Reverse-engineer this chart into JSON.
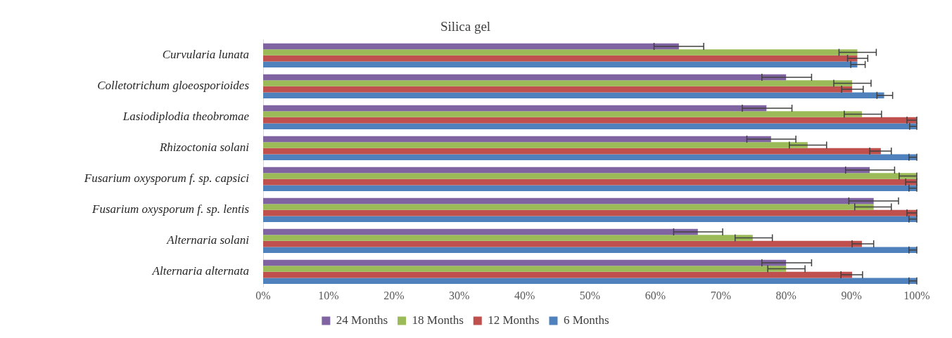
{
  "chart_data": {
    "type": "bar",
    "orientation": "horizontal",
    "title": "Silica gel",
    "categories": [
      "Curvularia lunata",
      "Colletotrichum gloeosporioides",
      "Lasiodiplodia theobromae",
      "Rhizoctonia solani",
      "Fusarium oxysporum f. sp. capsici",
      "Fusarium oxysporum f. sp. lentis",
      "Alternaria solani",
      "Alternaria alternata"
    ],
    "series": [
      {
        "name": "24 Months",
        "color": "#8064a2",
        "values": [
          63.6,
          80.0,
          77.0,
          77.7,
          92.8,
          93.4,
          66.5,
          80.0
        ],
        "errors": [
          [
            59.8,
            67.4
          ],
          [
            76.3,
            83.9
          ],
          [
            73.3,
            80.9
          ],
          [
            74.0,
            81.5
          ],
          [
            89.1,
            96.6
          ],
          [
            89.6,
            97.2
          ],
          [
            62.8,
            70.3
          ],
          [
            76.3,
            83.9
          ]
        ]
      },
      {
        "name": "18 Months",
        "color": "#9bbb59",
        "values": [
          90.9,
          90.1,
          91.6,
          83.3,
          100,
          93.4,
          74.9,
          80.0
        ],
        "errors": [
          [
            88.1,
            93.8
          ],
          [
            87.3,
            93.0
          ],
          [
            88.9,
            94.6
          ],
          [
            80.5,
            86.2
          ],
          [
            97.3,
            100
          ],
          [
            90.5,
            96.1
          ],
          [
            72.2,
            77.9
          ],
          [
            77.2,
            82.9
          ]
        ]
      },
      {
        "name": "12 Months",
        "color": "#c0504d",
        "values": [
          90.9,
          90.1,
          100,
          94.5,
          100,
          100,
          91.6,
          90.1
        ],
        "errors": [
          [
            89.4,
            92.5
          ],
          [
            88.5,
            91.8
          ],
          [
            98.5,
            100
          ],
          [
            92.8,
            96.1
          ],
          [
            98.3,
            100
          ],
          [
            98.5,
            100
          ],
          [
            90.1,
            93.4
          ],
          [
            88.4,
            91.7
          ]
        ]
      },
      {
        "name": "6 Months",
        "color": "#4f81bd",
        "values": [
          90.9,
          95.0,
          100,
          100,
          100,
          100,
          100,
          100
        ],
        "errors": [
          [
            89.9,
            92.1
          ],
          [
            93.9,
            96.3
          ],
          [
            98.9,
            100
          ],
          [
            98.8,
            100
          ],
          [
            98.8,
            100
          ],
          [
            98.8,
            100
          ],
          [
            98.8,
            100
          ],
          [
            98.8,
            100
          ]
        ]
      }
    ],
    "xlim": [
      0,
      100
    ],
    "xticks": [
      {
        "value": 0,
        "label": "0%"
      },
      {
        "value": 10,
        "label": "10%"
      },
      {
        "value": 20,
        "label": "20%"
      },
      {
        "value": 30,
        "label": "30%"
      },
      {
        "value": 40,
        "label": "40%"
      },
      {
        "value": 50,
        "label": "50%"
      },
      {
        "value": 60,
        "label": "60%"
      },
      {
        "value": 70,
        "label": "70%"
      },
      {
        "value": 80,
        "label": "80%"
      },
      {
        "value": 90,
        "label": "90%"
      },
      {
        "value": 100,
        "label": "100%"
      }
    ],
    "grid": false,
    "legend": "bottom"
  }
}
